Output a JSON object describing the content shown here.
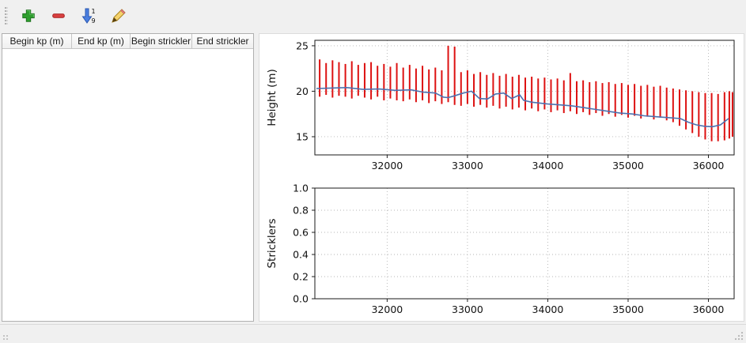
{
  "toolbar": {
    "sort_top": "1",
    "sort_bottom": "9",
    "colors": {
      "add": "#2e9e2e",
      "remove": "#d84040",
      "sort_arrow": "#4a7fe0"
    }
  },
  "table": {
    "columns": [
      "Begin kp (m)",
      "End kp (m)",
      "Begin strickler",
      "End strickler"
    ],
    "rows": []
  },
  "chart_data": [
    {
      "type": "bar",
      "title": "",
      "xlabel": "",
      "ylabel": "Height (m)",
      "xlim": [
        31100,
        36320
      ],
      "ylim": [
        13,
        25.6
      ],
      "xticks": [
        32000,
        33000,
        34000,
        35000,
        36000
      ],
      "xticklabels": [
        "32000",
        "33000",
        "34000",
        "35000",
        "36000"
      ],
      "yticks": [
        15,
        20,
        25
      ],
      "yticklabels": [
        "15",
        "20",
        "25"
      ],
      "grid": true,
      "legend": false,
      "bar_color": "#dd1111",
      "line_color": "#4c72b0",
      "bars": [
        [
          31160,
          19.4,
          23.5
        ],
        [
          31240,
          19.6,
          23.1
        ],
        [
          31320,
          19.3,
          23.4
        ],
        [
          31400,
          19.5,
          23.2
        ],
        [
          31480,
          19.4,
          23.0
        ],
        [
          31560,
          19.2,
          23.3
        ],
        [
          31640,
          19.5,
          22.9
        ],
        [
          31720,
          19.3,
          23.1
        ],
        [
          31800,
          19.1,
          23.2
        ],
        [
          31880,
          19.4,
          22.8
        ],
        [
          31960,
          19.0,
          23.0
        ],
        [
          32040,
          19.2,
          22.7
        ],
        [
          32120,
          19.0,
          23.1
        ],
        [
          32200,
          18.9,
          22.6
        ],
        [
          32280,
          19.1,
          22.9
        ],
        [
          32360,
          18.8,
          22.5
        ],
        [
          32440,
          19.0,
          22.8
        ],
        [
          32520,
          18.7,
          22.4
        ],
        [
          32600,
          18.9,
          22.6
        ],
        [
          32680,
          18.6,
          22.3
        ],
        [
          32760,
          18.8,
          25.0
        ],
        [
          32840,
          18.5,
          24.9
        ],
        [
          32920,
          18.4,
          22.1
        ],
        [
          33000,
          18.6,
          22.3
        ],
        [
          33080,
          18.3,
          21.9
        ],
        [
          33160,
          18.5,
          22.1
        ],
        [
          33240,
          18.2,
          21.8
        ],
        [
          33320,
          18.4,
          22.0
        ],
        [
          33400,
          18.1,
          21.7
        ],
        [
          33480,
          18.3,
          21.9
        ],
        [
          33560,
          18.0,
          21.6
        ],
        [
          33640,
          18.2,
          21.8
        ],
        [
          33720,
          17.9,
          21.5
        ],
        [
          33800,
          18.1,
          21.6
        ],
        [
          33880,
          17.8,
          21.4
        ],
        [
          33960,
          18.0,
          21.5
        ],
        [
          34040,
          17.7,
          21.3
        ],
        [
          34120,
          17.9,
          21.4
        ],
        [
          34200,
          17.6,
          21.2
        ],
        [
          34280,
          17.8,
          22.0
        ],
        [
          34360,
          17.5,
          21.1
        ],
        [
          34440,
          17.7,
          21.2
        ],
        [
          34520,
          17.4,
          21.0
        ],
        [
          34600,
          17.6,
          21.1
        ],
        [
          34680,
          17.3,
          20.9
        ],
        [
          34760,
          17.5,
          21.0
        ],
        [
          34840,
          17.2,
          20.8
        ],
        [
          34920,
          17.4,
          20.9
        ],
        [
          35000,
          17.1,
          20.7
        ],
        [
          35080,
          17.3,
          20.8
        ],
        [
          35160,
          17.0,
          20.6
        ],
        [
          35240,
          17.2,
          20.7
        ],
        [
          35320,
          16.9,
          20.5
        ],
        [
          35400,
          17.1,
          20.6
        ],
        [
          35480,
          16.8,
          20.4
        ],
        [
          35560,
          16.6,
          20.3
        ],
        [
          35640,
          16.2,
          20.2
        ],
        [
          35720,
          15.8,
          20.1
        ],
        [
          35800,
          15.4,
          20.0
        ],
        [
          35880,
          15.0,
          19.9
        ],
        [
          35960,
          14.7,
          19.8
        ],
        [
          36040,
          14.5,
          19.8
        ],
        [
          36120,
          14.5,
          19.7
        ],
        [
          36200,
          14.6,
          19.9
        ],
        [
          36260,
          14.8,
          20.0
        ],
        [
          36300,
          15.0,
          19.9
        ]
      ],
      "line": [
        [
          31120,
          20.3
        ],
        [
          31300,
          20.35
        ],
        [
          31500,
          20.4
        ],
        [
          31700,
          20.2
        ],
        [
          31900,
          20.25
        ],
        [
          32100,
          20.1
        ],
        [
          32300,
          20.15
        ],
        [
          32450,
          19.9
        ],
        [
          32600,
          19.8
        ],
        [
          32700,
          19.35
        ],
        [
          32760,
          19.3
        ],
        [
          32840,
          19.5
        ],
        [
          32950,
          19.8
        ],
        [
          33050,
          20.0
        ],
        [
          33150,
          19.2
        ],
        [
          33250,
          19.15
        ],
        [
          33350,
          19.7
        ],
        [
          33450,
          19.8
        ],
        [
          33550,
          19.2
        ],
        [
          33650,
          19.6
        ],
        [
          33700,
          19.0
        ],
        [
          33800,
          18.8
        ],
        [
          33900,
          18.7
        ],
        [
          34000,
          18.6
        ],
        [
          34150,
          18.5
        ],
        [
          34300,
          18.4
        ],
        [
          34450,
          18.2
        ],
        [
          34600,
          18.0
        ],
        [
          34750,
          17.8
        ],
        [
          34900,
          17.6
        ],
        [
          35050,
          17.5
        ],
        [
          35200,
          17.3
        ],
        [
          35350,
          17.2
        ],
        [
          35500,
          17.1
        ],
        [
          35650,
          17.0
        ],
        [
          35750,
          16.6
        ],
        [
          35850,
          16.3
        ],
        [
          35950,
          16.15
        ],
        [
          36050,
          16.1
        ],
        [
          36150,
          16.3
        ],
        [
          36250,
          17.0
        ]
      ]
    },
    {
      "type": "line",
      "title": "",
      "xlabel": "",
      "ylabel": "Stricklers",
      "xlim": [
        31100,
        36320
      ],
      "ylim": [
        0,
        1
      ],
      "xticks": [
        32000,
        33000,
        34000,
        35000,
        36000
      ],
      "xticklabels": [
        "32000",
        "33000",
        "34000",
        "35000",
        "36000"
      ],
      "yticks": [
        0,
        0.2,
        0.4,
        0.6,
        0.8,
        1.0
      ],
      "yticklabels": [
        "0.0",
        "0.2",
        "0.4",
        "0.6",
        "0.8",
        "1.0"
      ],
      "grid": true,
      "legend": false,
      "series": []
    }
  ]
}
